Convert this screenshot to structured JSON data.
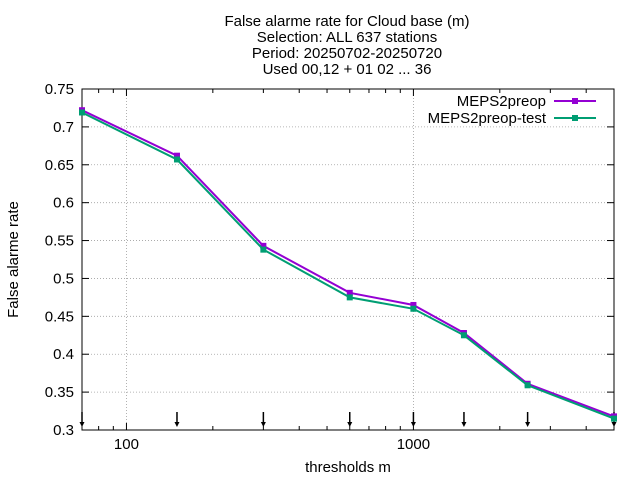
{
  "chart_data": {
    "type": "line",
    "title_lines": [
      "False alarme rate  for Cloud base (m)",
      "Selection: ALL    637 stations",
      "Period: 20250702-20250720",
      "Used 00,12 + 01 02 ... 36"
    ],
    "xlabel": "thresholds m",
    "ylabel": "False alarme rate",
    "x_scale": "log",
    "xlim": [
      70,
      5000
    ],
    "ylim": [
      0.3,
      0.75
    ],
    "x_ticks": [
      {
        "value": 100,
        "label": "100"
      },
      {
        "value": 1000,
        "label": "1000"
      }
    ],
    "y_ticks": [
      {
        "value": 0.3,
        "label": "0.3"
      },
      {
        "value": 0.35,
        "label": "0.35"
      },
      {
        "value": 0.4,
        "label": "0.4"
      },
      {
        "value": 0.45,
        "label": "0.45"
      },
      {
        "value": 0.5,
        "label": "0.5"
      },
      {
        "value": 0.55,
        "label": "0.55"
      },
      {
        "value": 0.6,
        "label": "0.6"
      },
      {
        "value": 0.65,
        "label": "0.65"
      },
      {
        "value": 0.7,
        "label": "0.7"
      },
      {
        "value": 0.75,
        "label": "0.75"
      }
    ],
    "grid": true,
    "legend_position": "top-right",
    "threshold_markers": [
      70,
      150,
      300,
      600,
      1000,
      1500,
      2500,
      5000
    ],
    "series": [
      {
        "name": "MEPS2preop",
        "color": "#9400d3",
        "x": [
          70,
          150,
          300,
          600,
          1000,
          1500,
          2500,
          5000
        ],
        "y": [
          0.722,
          0.662,
          0.543,
          0.481,
          0.465,
          0.428,
          0.361,
          0.318
        ]
      },
      {
        "name": "MEPS2preop-test",
        "color": "#009e73",
        "x": [
          70,
          150,
          300,
          600,
          1000,
          1500,
          2500,
          5000
        ],
        "y": [
          0.719,
          0.657,
          0.538,
          0.475,
          0.46,
          0.425,
          0.359,
          0.315
        ]
      }
    ]
  }
}
